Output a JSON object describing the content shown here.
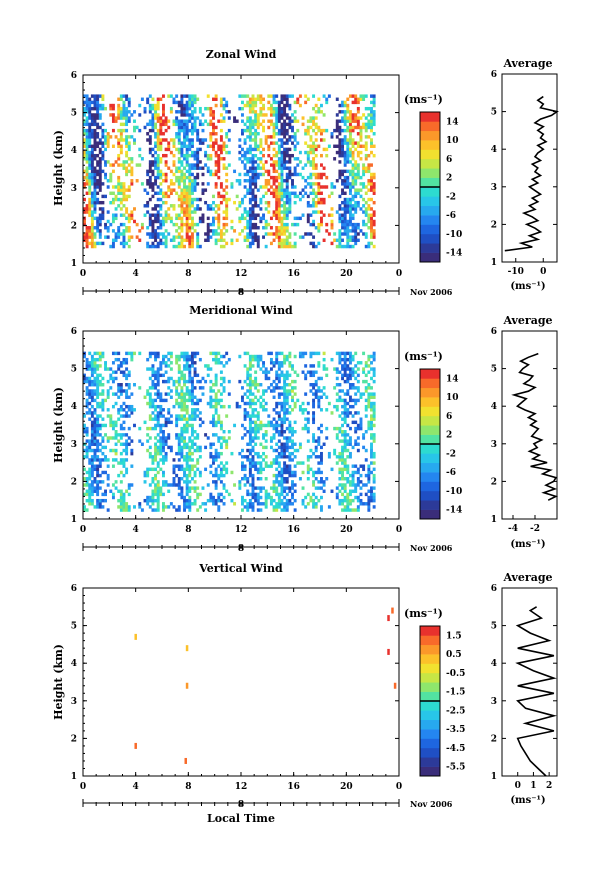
{
  "chart_data": [
    {
      "type": "heatmap",
      "title": "Zonal Wind",
      "ylabel": "Height (km)",
      "xlabel": "",
      "xlim": [
        0,
        24
      ],
      "ylim": [
        1,
        6
      ],
      "xticks": [
        "0",
        "4",
        "8",
        "12",
        "16",
        "20",
        "0"
      ],
      "xtick_values": [
        0,
        4,
        8,
        12,
        16,
        20,
        24
      ],
      "yticks": [
        "1",
        "2",
        "3",
        "4",
        "5",
        "6"
      ],
      "date_axis": {
        "label": "8",
        "suffix": "Nov 2006"
      },
      "colorbar": {
        "unit": "(ms⁻¹)",
        "ticks": [
          "14",
          "10",
          "6",
          "2",
          "-2",
          "-6",
          "-10",
          "-14"
        ],
        "range": [
          -16,
          16
        ]
      },
      "data_extent": {
        "x": [
          0,
          22
        ],
        "y": [
          1.4,
          5.4
        ]
      },
      "average": {
        "title": "Average",
        "xlabel": "(ms⁻¹)",
        "xlim": [
          -15,
          5
        ],
        "xticks": [
          "-10",
          "0"
        ],
        "xtick_values": [
          -10,
          0
        ],
        "ylim": [
          1,
          6
        ],
        "yticks": [
          "1",
          "2",
          "3",
          "4",
          "5",
          "6"
        ],
        "height": [
          1.3,
          1.4,
          1.5,
          1.6,
          1.7,
          1.8,
          1.9,
          2.0,
          2.1,
          2.2,
          2.3,
          2.4,
          2.5,
          2.6,
          2.7,
          2.8,
          2.9,
          3.0,
          3.1,
          3.2,
          3.3,
          3.4,
          3.5,
          3.6,
          3.7,
          3.8,
          3.9,
          4.0,
          4.1,
          4.2,
          4.3,
          4.4,
          4.5,
          4.6,
          4.7,
          4.8,
          4.9,
          5.0,
          5.1,
          5.2,
          5.3,
          5.4
        ],
        "value": [
          -14,
          -4,
          -8,
          -2,
          -5,
          -1,
          -3,
          -6,
          -2,
          -4,
          -7,
          -3,
          -5,
          -2,
          -4,
          -1,
          -3,
          -5,
          -2,
          -4,
          -1,
          -3,
          -2,
          -4,
          -1,
          -3,
          -2,
          0,
          -2,
          1,
          -1,
          0,
          -2,
          0,
          -3,
          -1,
          3,
          5,
          -1,
          0,
          -2,
          0
        ]
      }
    },
    {
      "type": "heatmap",
      "title": "Meridional Wind",
      "ylabel": "Height (km)",
      "xlabel": "",
      "xlim": [
        0,
        24
      ],
      "ylim": [
        1,
        6
      ],
      "xticks": [
        "0",
        "4",
        "8",
        "12",
        "16",
        "20",
        "0"
      ],
      "xtick_values": [
        0,
        4,
        8,
        12,
        16,
        20,
        24
      ],
      "yticks": [
        "1",
        "2",
        "3",
        "4",
        "5",
        "6"
      ],
      "date_axis": {
        "label": "8",
        "suffix": "Nov 2006"
      },
      "colorbar": {
        "unit": "(ms⁻¹)",
        "ticks": [
          "14",
          "10",
          "6",
          "2",
          "-2",
          "-6",
          "-10",
          "-14"
        ],
        "range": [
          -16,
          16
        ]
      },
      "data_extent": {
        "x": [
          0,
          22
        ],
        "y": [
          1.2,
          5.4
        ]
      },
      "average": {
        "title": "Average",
        "xlabel": "(ms⁻¹)",
        "xlim": [
          -5,
          0
        ],
        "xticks": [
          "-4",
          "-2"
        ],
        "xtick_values": [
          -4,
          -2
        ],
        "ylim": [
          1,
          6
        ],
        "yticks": [
          "1",
          "2",
          "3",
          "4",
          "5",
          "6"
        ],
        "height": [
          1.5,
          1.6,
          1.7,
          1.8,
          1.9,
          2.0,
          2.1,
          2.2,
          2.3,
          2.4,
          2.5,
          2.6,
          2.7,
          2.8,
          2.9,
          3.0,
          3.1,
          3.2,
          3.3,
          3.4,
          3.5,
          3.6,
          3.7,
          3.8,
          3.9,
          4.0,
          4.1,
          4.2,
          4.3,
          4.4,
          4.5,
          4.6,
          4.7,
          4.8,
          4.9,
          5.0,
          5.1,
          5.2,
          5.3,
          5.4
        ],
        "value": [
          -0.8,
          -0.1,
          -1.2,
          -0.2,
          -1.0,
          -0.3,
          -0.1,
          -1.3,
          -0.6,
          -2.4,
          -0.9,
          -2.2,
          -1.6,
          -2.5,
          -1.8,
          -2.1,
          -1.4,
          -2.3,
          -2.0,
          -1.7,
          -2.4,
          -1.9,
          -2.6,
          -2.0,
          -2.9,
          -3.6,
          -3.2,
          -2.8,
          -3.9,
          -2.6,
          -2.0,
          -3.0,
          -2.5,
          -2.2,
          -3.4,
          -3.1,
          -2.6,
          -3.3,
          -2.6,
          -1.7
        ]
      }
    },
    {
      "type": "heatmap",
      "title": "Vertical Wind",
      "ylabel": "Height (km)",
      "xlabel": "Local Time",
      "xlim": [
        0,
        24
      ],
      "ylim": [
        1,
        6
      ],
      "xticks": [
        "0",
        "4",
        "8",
        "12",
        "16",
        "20",
        "0"
      ],
      "xtick_values": [
        0,
        4,
        8,
        12,
        16,
        20,
        24
      ],
      "yticks": [
        "1",
        "2",
        "3",
        "4",
        "5",
        "6"
      ],
      "date_axis": {
        "label": "8",
        "suffix": "Nov 2006"
      },
      "colorbar": {
        "unit": "(ms⁻¹)",
        "ticks": [
          "1.5",
          "0.5",
          "-0.5",
          "-1.5",
          "-2.5",
          "-3.5",
          "-4.5",
          "-5.5"
        ],
        "range": [
          -6,
          2
        ]
      },
      "points": [
        {
          "x": 4.0,
          "y": 4.7,
          "value": 0.2
        },
        {
          "x": 4.0,
          "y": 1.8,
          "value": 1.0
        },
        {
          "x": 7.9,
          "y": 4.4,
          "value": 0.4
        },
        {
          "x": 7.9,
          "y": 3.4,
          "value": 0.6
        },
        {
          "x": 7.8,
          "y": 1.4,
          "value": 1.4
        },
        {
          "x": 23.2,
          "y": 5.2,
          "value": 1.5
        },
        {
          "x": 23.5,
          "y": 5.4,
          "value": 1.2
        },
        {
          "x": 23.2,
          "y": 4.3,
          "value": 1.5
        },
        {
          "x": 23.7,
          "y": 3.4,
          "value": 1.0
        }
      ],
      "average": {
        "title": "Average",
        "xlabel": "(ms⁻¹)",
        "xlim": [
          -1,
          2.5
        ],
        "xticks": [
          "0",
          "1",
          "2"
        ],
        "xtick_values": [
          0,
          1,
          2
        ],
        "ylim": [
          1,
          6
        ],
        "yticks": [
          "1",
          "2",
          "3",
          "4",
          "5",
          "6"
        ],
        "height": [
          1.0,
          1.2,
          1.4,
          1.6,
          1.8,
          2.0,
          2.2,
          2.4,
          2.6,
          2.8,
          3.0,
          3.2,
          3.4,
          3.6,
          3.8,
          4.0,
          4.2,
          4.4,
          4.6,
          4.8,
          5.0,
          5.2,
          5.4,
          5.5
        ],
        "value": [
          1.8,
          1.3,
          0.8,
          0.5,
          0.2,
          0.0,
          2.3,
          0.5,
          2.3,
          0.5,
          0.0,
          2.3,
          0.0,
          2.3,
          1.0,
          0.0,
          2.3,
          0.0,
          2.0,
          0.8,
          0.0,
          1.5,
          0.8,
          1.2
        ]
      }
    }
  ]
}
